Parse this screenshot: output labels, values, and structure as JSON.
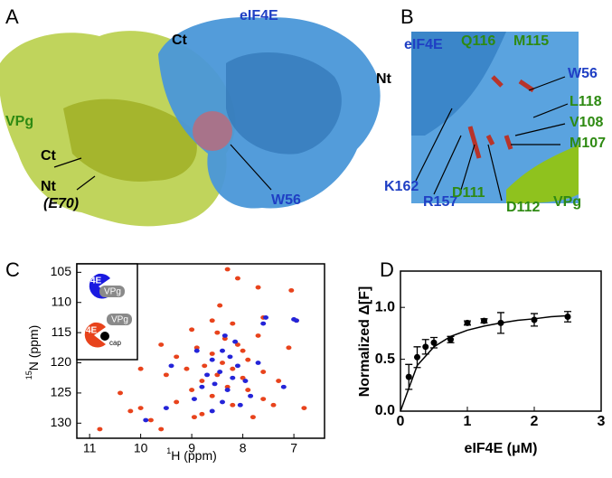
{
  "panel_labels": [
    "A",
    "B",
    "C",
    "D"
  ],
  "panel_a": {
    "labels": [
      "eIF4E",
      "Ct",
      "Nt",
      "VPg",
      "Ct",
      "Nt",
      "(E70)",
      "W56"
    ]
  },
  "panel_b": {
    "labels": [
      "eIF4E",
      "Q116",
      "M115",
      "W56",
      "L118",
      "V108",
      "M107",
      "K162",
      "R157",
      "D111",
      "D112",
      "VPg"
    ]
  },
  "chart_data": [
    {
      "type": "scatter",
      "x_label_sup": "1",
      "x_label": "H (ppm)",
      "y_label_sup": "15",
      "y_label": "N (ppm)",
      "xlim": [
        11.25,
        6.4
      ],
      "ylim": [
        132.5,
        103.6
      ],
      "xticks": [
        11,
        10,
        9,
        8,
        7
      ],
      "yticks": [
        105,
        110,
        115,
        120,
        125,
        130
      ],
      "inset_labels": [
        "4E",
        "VPg",
        "4E",
        "VPg",
        "cap"
      ],
      "series": [
        {
          "color": "#e8431c",
          "x": [
            8.3,
            8.1,
            7.7,
            7.05,
            6.95,
            7.6,
            8.6,
            8.2,
            9.0,
            8.5,
            7.7,
            8.35,
            8.1,
            8.9,
            8.0,
            8.6,
            9.3,
            7.9,
            8.4,
            8.75,
            8.2,
            9.1,
            7.6,
            8.5,
            8.0,
            9.5,
            10.0,
            8.8,
            7.3,
            8.3,
            9.0,
            7.9,
            8.6,
            10.4,
            7.6,
            9.3,
            8.2,
            10.0,
            7.4,
            8.8,
            9.8,
            7.8,
            10.8,
            9.6,
            6.8,
            7.1,
            8.45,
            9.6,
            10.2,
            8.95
          ],
          "values": [
            104.5,
            106,
            107.5,
            108,
            113,
            112.5,
            113,
            113.5,
            114.5,
            115,
            115.5,
            116,
            117,
            117.5,
            118,
            118.5,
            119,
            119.5,
            120,
            120.5,
            121,
            121,
            121.5,
            122,
            122.5,
            122,
            121,
            123,
            123,
            124,
            124.5,
            124.5,
            125.5,
            125,
            126,
            126.5,
            127,
            127.5,
            127,
            128.5,
            129.5,
            129,
            131,
            131,
            127.5,
            117.5,
            110.5,
            117,
            128,
            129
          ]
        },
        {
          "color": "#2424d8",
          "x": [
            7.55,
            7.6,
            6.95,
            7.0,
            8.35,
            8.15,
            8.4,
            8.25,
            8.6,
            8.1,
            8.45,
            8.7,
            8.2,
            7.95,
            8.55,
            8.3,
            8.8,
            7.85,
            8.95,
            8.4,
            8.05,
            9.5,
            9.9,
            8.6,
            7.7,
            9.4,
            8.9,
            7.2
          ],
          "values": [
            112.5,
            113.5,
            113,
            112.8,
            115.5,
            116.5,
            118,
            119,
            119.5,
            120.5,
            121.5,
            122,
            122.5,
            123,
            123.5,
            124.5,
            124,
            125.5,
            126,
            126.5,
            127,
            127.5,
            129.5,
            128,
            120,
            120.5,
            118,
            124
          ]
        }
      ]
    },
    {
      "type": "scatter",
      "x_label": "eIF4E (μM)",
      "y_label": "Normalized Δ[F]",
      "xlim": [
        0,
        3
      ],
      "ylim": [
        0,
        1.35
      ],
      "xticks": [
        0,
        1,
        2,
        3
      ],
      "yticks": [
        {
          "value": 0,
          "label": "0.0"
        },
        {
          "value": 0.5,
          "label": "0.5"
        },
        {
          "value": 1,
          "label": "1.0"
        }
      ],
      "series": [
        {
          "color": "#000000",
          "x": [
            0.125,
            0.25,
            0.375,
            0.5,
            0.75,
            1.0,
            1.25,
            1.5,
            2.0,
            2.5
          ],
          "values": [
            0.33,
            0.52,
            0.62,
            0.66,
            0.69,
            0.85,
            0.87,
            0.85,
            0.88,
            0.91
          ],
          "errors": [
            0.12,
            0.1,
            0.07,
            0.05,
            0.03,
            0.02,
            0.02,
            0.1,
            0.06,
            0.05
          ]
        }
      ],
      "fit": {
        "x": [
          0,
          0.25,
          0.5,
          0.75,
          1.0,
          1.25,
          1.5,
          1.75,
          2.0,
          2.25,
          2.5
        ],
        "values": [
          0,
          0.44,
          0.62,
          0.72,
          0.78,
          0.82,
          0.85,
          0.875,
          0.89,
          0.91,
          0.92
        ]
      }
    }
  ]
}
